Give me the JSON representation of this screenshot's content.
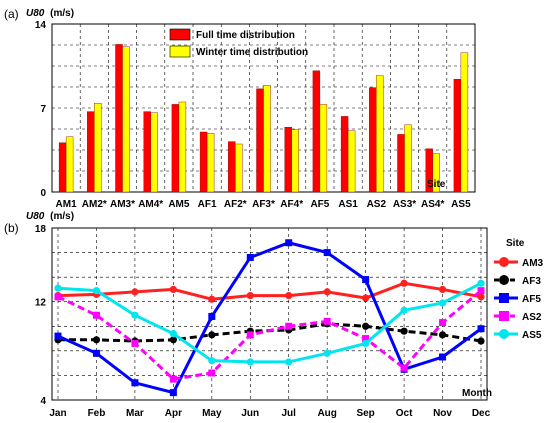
{
  "panels": [
    "(a)",
    "(b)"
  ],
  "chart_data": [
    {
      "type": "bar",
      "ylabel_var": "U80",
      "ylabel_unit": "(m/s)",
      "ylim": [
        0,
        14
      ],
      "yticks": [
        0,
        7,
        14
      ],
      "grid": true,
      "legend_position": "top-center",
      "categories": [
        "AM1",
        "AM2*",
        "AM3*",
        "AM4*",
        "AM5",
        "AF1",
        "AF2*",
        "AF3*",
        "AF4*",
        "AF5",
        "AS1",
        "AS2",
        "AS3*",
        "AS4*",
        "AS5"
      ],
      "series": [
        {
          "name": "Full time distribution",
          "color": "#ff0000",
          "values": [
            4.1,
            6.7,
            12.3,
            6.7,
            7.3,
            5.0,
            4.2,
            8.6,
            5.4,
            10.1,
            6.3,
            8.7,
            4.8,
            3.6,
            9.4
          ]
        },
        {
          "name": "Winter time distribution",
          "color": "#ffff00",
          "values": [
            4.6,
            7.4,
            12.1,
            6.6,
            7.5,
            4.9,
            4.0,
            8.9,
            5.2,
            7.3,
            5.1,
            9.7,
            5.6,
            3.2,
            11.6
          ]
        }
      ],
      "annotation": "Site"
    },
    {
      "type": "line",
      "ylabel_var": "U80",
      "ylabel_unit": "(m/s)",
      "ylim": [
        4,
        18
      ],
      "yticks": [
        4,
        12,
        18
      ],
      "grid": true,
      "xlabel": "Month",
      "legend_title": "Site",
      "legend_position": "right",
      "x": [
        "Jan",
        "Feb",
        "Mar",
        "Apr",
        "May",
        "Jun",
        "Jul",
        "Aug",
        "Sep",
        "Oct",
        "Nov",
        "Dec"
      ],
      "series": [
        {
          "name": "AM3",
          "color": "#ff2020",
          "dash": "solid",
          "marker": "circle",
          "values": [
            12.5,
            12.6,
            12.8,
            13.0,
            12.2,
            12.5,
            12.5,
            12.8,
            12.3,
            13.5,
            13.0,
            12.4
          ]
        },
        {
          "name": "AF3",
          "color": "#000000",
          "dash": "dashed",
          "marker": "circle",
          "values": [
            8.9,
            8.9,
            8.8,
            8.9,
            9.3,
            9.6,
            9.7,
            10.2,
            10.0,
            9.6,
            9.3,
            8.8
          ]
        },
        {
          "name": "AF5",
          "color": "#0000ff",
          "dash": "solid",
          "marker": "square",
          "values": [
            9.2,
            7.8,
            5.4,
            4.6,
            10.8,
            15.6,
            16.8,
            16.0,
            13.8,
            6.5,
            7.5,
            9.8
          ]
        },
        {
          "name": "AS2",
          "color": "#ff00ff",
          "dash": "dashed",
          "marker": "square",
          "values": [
            12.4,
            10.9,
            8.6,
            5.7,
            6.2,
            9.3,
            10.0,
            10.4,
            9.0,
            6.6,
            10.3,
            12.9
          ]
        },
        {
          "name": "AS5",
          "color": "#00e5ee",
          "dash": "solid",
          "marker": "circle",
          "values": [
            13.1,
            12.9,
            10.9,
            9.4,
            7.2,
            7.1,
            7.1,
            7.8,
            8.6,
            11.3,
            11.9,
            13.5
          ]
        }
      ]
    }
  ]
}
